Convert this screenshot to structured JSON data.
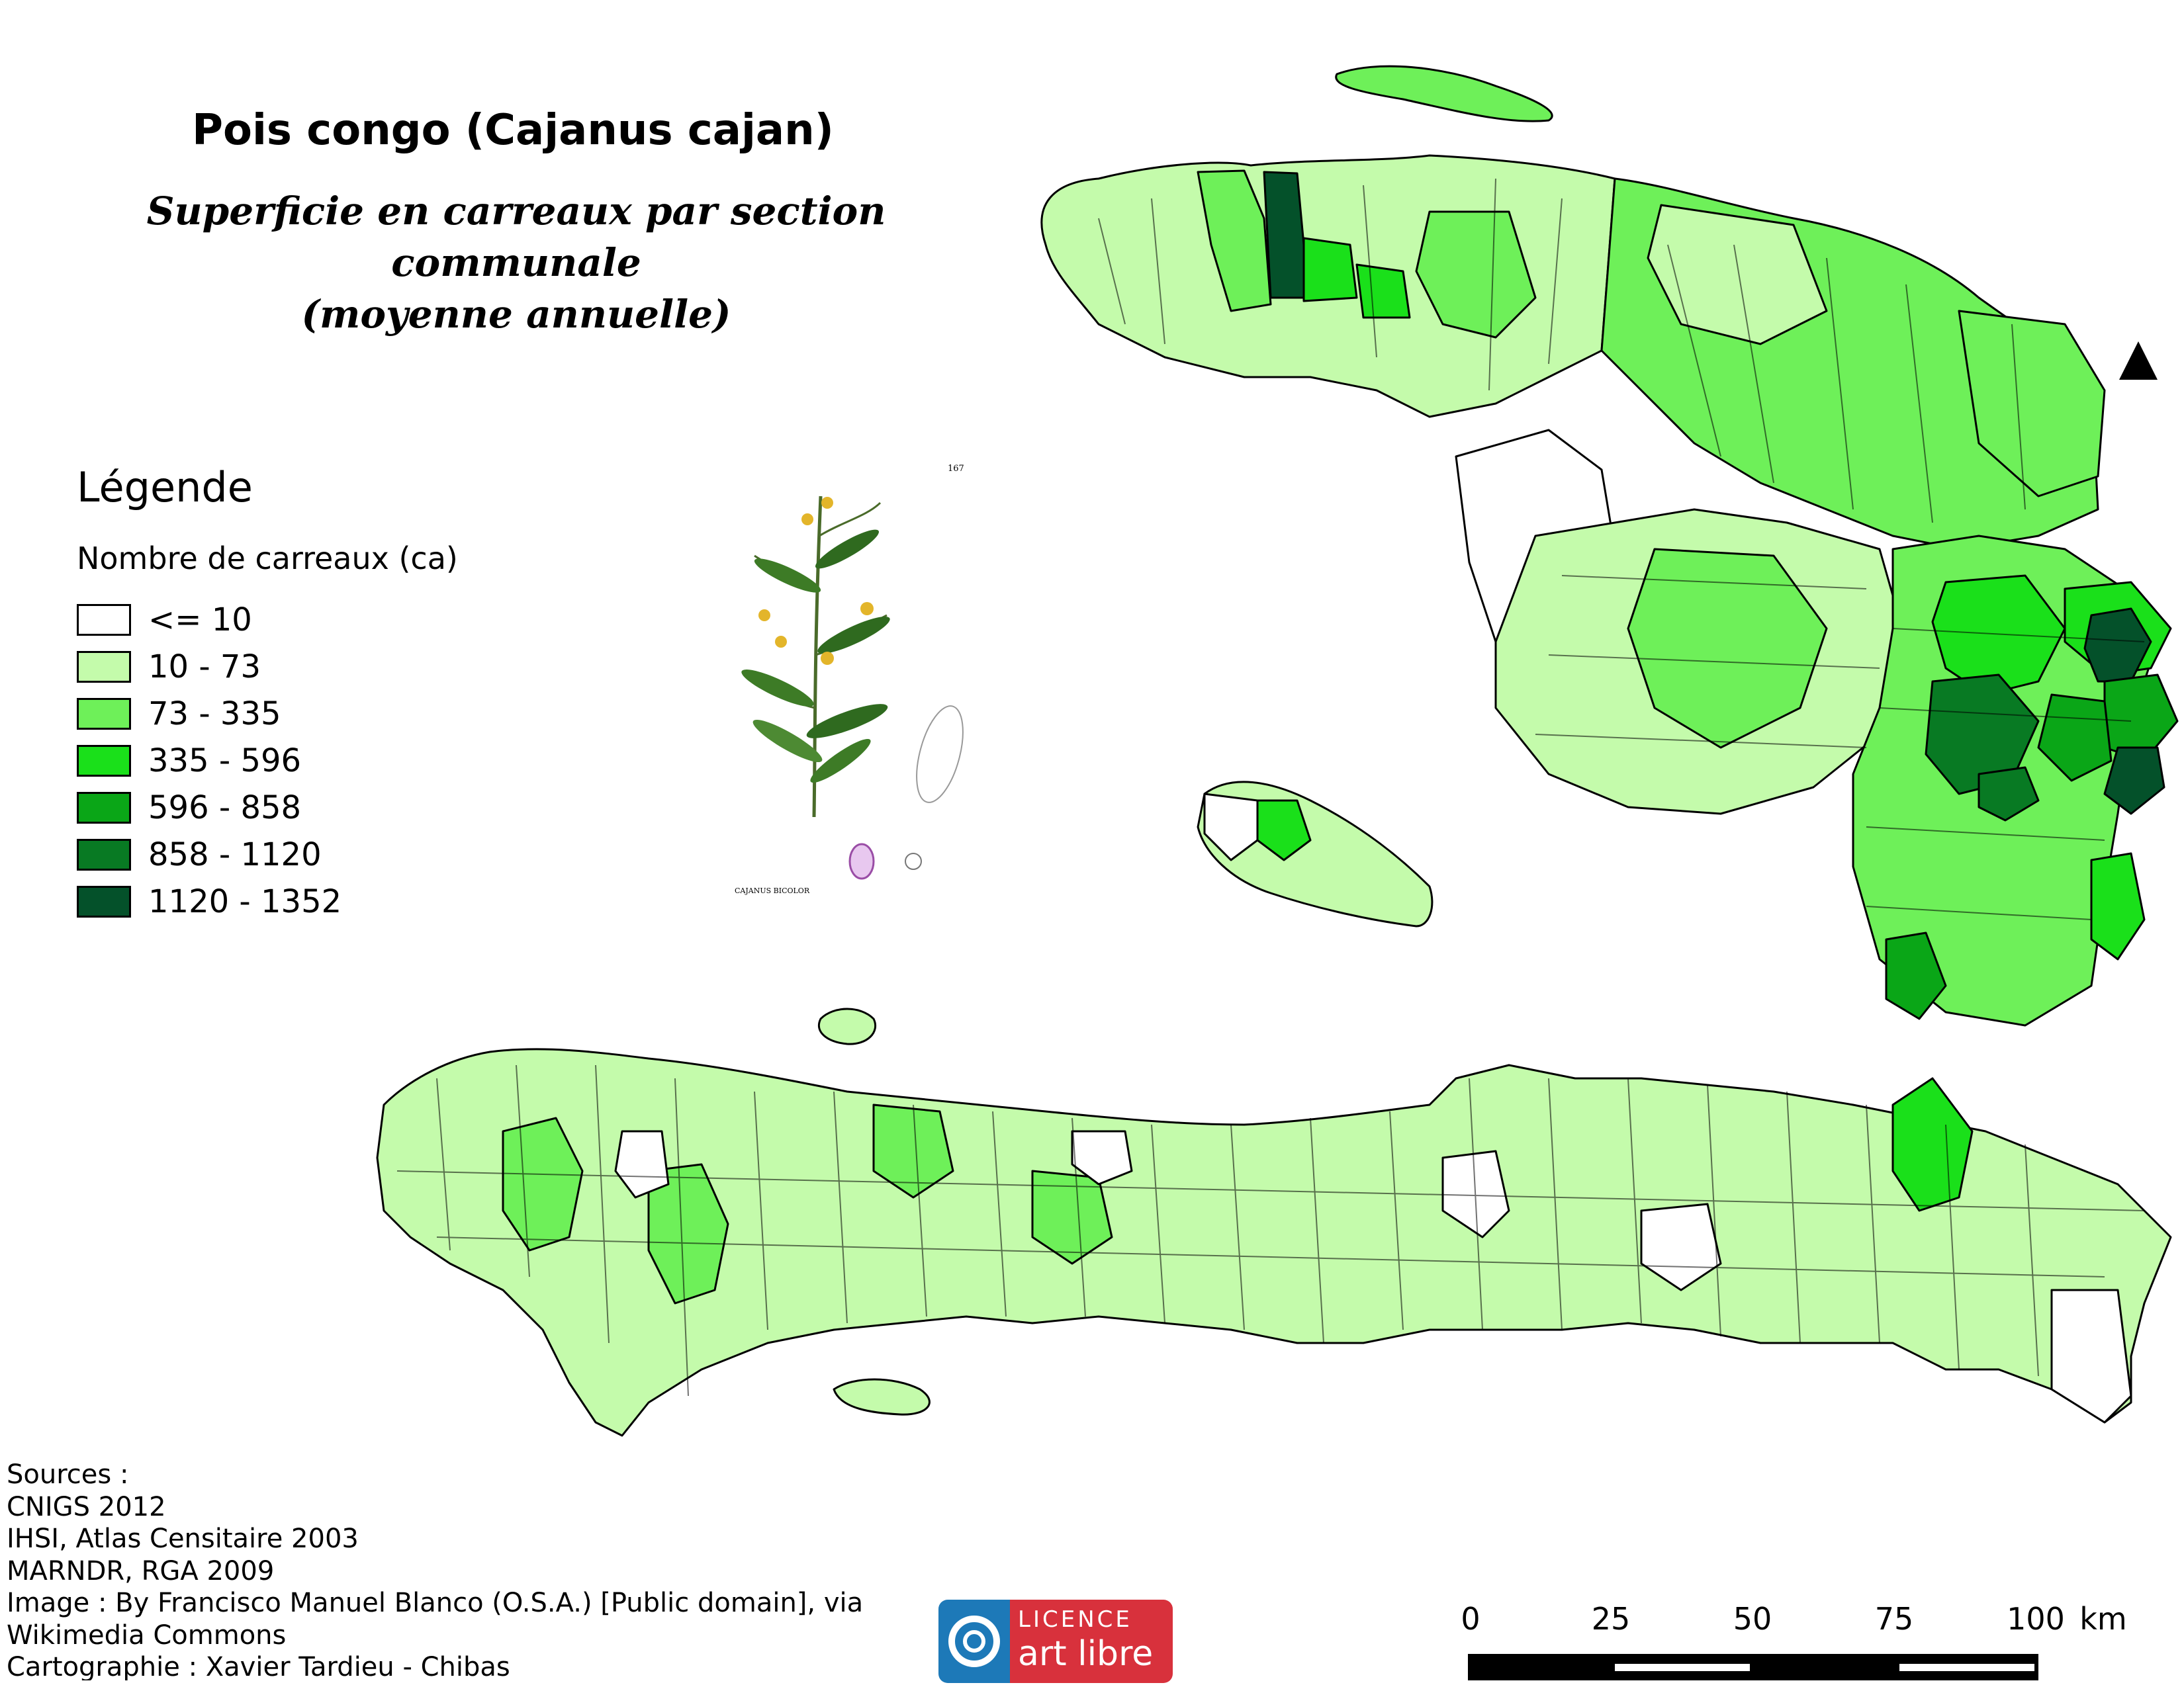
{
  "title": "Pois congo (Cajanus cajan)",
  "subtitle_line1": "Superficie en carreaux par section communale",
  "subtitle_line2": "(moyenne annuelle)",
  "legend": {
    "title": "Légende",
    "subtitle": "Nombre de carreaux (ca)",
    "classes": [
      {
        "label": "<= 10",
        "color": "#ffffff"
      },
      {
        "label": "10 - 73",
        "color": "#c4fbab"
      },
      {
        "label": "73 - 335",
        "color": "#6ef059"
      },
      {
        "label": "335 - 596",
        "color": "#1ae01a"
      },
      {
        "label": "596 - 858",
        "color": "#0aa617"
      },
      {
        "label": "858 - 1120",
        "color": "#087a23"
      },
      {
        "label": "1120 - 1352",
        "color": "#04512a"
      }
    ]
  },
  "plant_illustration": {
    "page_number": "167",
    "caption": "CAJANUS BICOLOR"
  },
  "sources": [
    "Sources :",
    "CNIGS 2012",
    "IHSI, Atlas Censitaire 2003",
    "MARNDR, RGA 2009",
    "Image :  By Francisco Manuel Blanco (O.S.A.) [Public domain], via",
    "Wikimedia Commons",
    "Cartographie : Xavier Tardieu - Chibas"
  ],
  "license": {
    "top": "LICENCE",
    "bottom": "art libre",
    "left_color": "#1d79b8",
    "right_color": "#d8313c"
  },
  "scale": {
    "ticks": [
      "0",
      "25",
      "50",
      "75",
      "100"
    ],
    "unit": "km"
  },
  "north_arrow_icon": "north-arrow-icon"
}
